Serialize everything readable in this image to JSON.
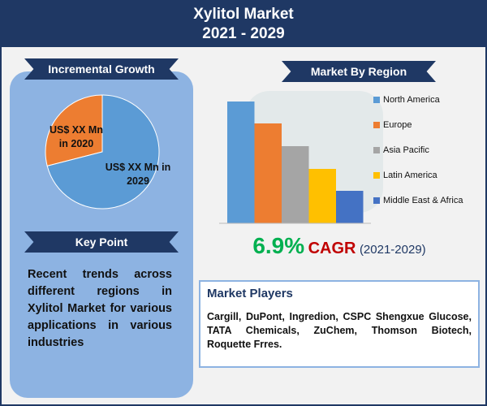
{
  "header": {
    "title": "Xylitol Market",
    "subtitle": "2021 - 2029"
  },
  "incremental_growth": {
    "heading": "Incremental Growth",
    "slices": [
      {
        "label": "US$ XX Mn in 2020",
        "value": 29,
        "color": "#ed7d31"
      },
      {
        "label": "US$ XX Mn in 2029",
        "value": 71,
        "color": "#5b9bd5"
      }
    ]
  },
  "key_point": {
    "heading": "Key Point",
    "text": "Recent trends across different regions in Xylitol Market for various applications in various industries"
  },
  "market_by_region": {
    "heading": "Market By Region",
    "series": [
      {
        "name": "North America",
        "color": "#5b9bd5",
        "value": 150
      },
      {
        "name": "Europe",
        "color": "#ed7d31",
        "value": 123
      },
      {
        "name": "Asia Pacific",
        "color": "#a5a5a5",
        "value": 95
      },
      {
        "name": "Latin America",
        "color": "#ffc000",
        "value": 67
      },
      {
        "name": "Middle East & Africa",
        "color": "#4472c4",
        "value": 40
      }
    ]
  },
  "cagr": {
    "value": "6.9%",
    "label": "CAGR",
    "period": "(2021-2029)"
  },
  "market_players": {
    "heading": "Market Players",
    "text": "Cargill, DuPont, Ingredion, CSPC Shengxue Glucose, TATA Chemicals, ZuChem, Thomson Biotech, Roquette Frres."
  }
}
